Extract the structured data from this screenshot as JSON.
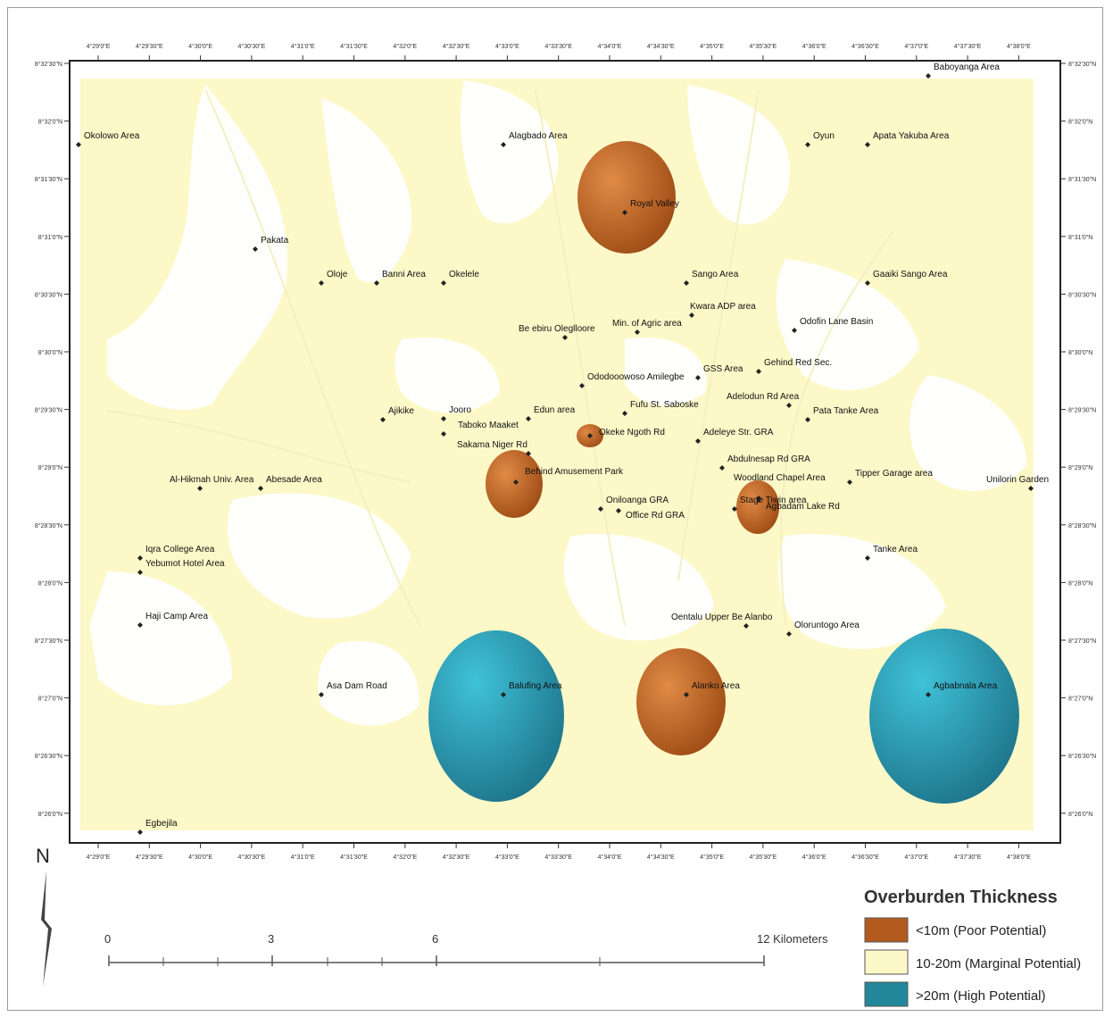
{
  "legend": {
    "title": "Overburden Thickness",
    "items": [
      {
        "label": "<10m (Poor Potential)",
        "color": "#b35a1e"
      },
      {
        "label": "10-20m (Marginal Potential)",
        "color": "#fdf8c8"
      },
      {
        "label": ">20m (High Potential)",
        "color": "#23879c"
      }
    ]
  },
  "scale_bar": {
    "labels": [
      "0",
      "3",
      "6",
      "12 Kilometers"
    ]
  },
  "north_label": "N",
  "places": [
    {
      "name": "Baboyanga Area"
    },
    {
      "name": "Okolowo Area"
    },
    {
      "name": "Alagbado Area"
    },
    {
      "name": "Oyun"
    },
    {
      "name": "Apata Yakuba Area"
    },
    {
      "name": "Royal Valley"
    },
    {
      "name": "Pakata"
    },
    {
      "name": "Oloje"
    },
    {
      "name": "Banni Area"
    },
    {
      "name": "Okelele"
    },
    {
      "name": "Sango Area"
    },
    {
      "name": "Gaaiki Sango Area"
    },
    {
      "name": "Kwara ADP area"
    },
    {
      "name": "Odofin Lane Basin"
    },
    {
      "name": "Be ebiru Oleglloore"
    },
    {
      "name": "Min. of Agric area"
    },
    {
      "name": "GSS Area"
    },
    {
      "name": "Gehind Red Sec."
    },
    {
      "name": "Ododooowoso Amilegbe"
    },
    {
      "name": "Adelodun Rd Area"
    },
    {
      "name": "Ajikike"
    },
    {
      "name": "Jooro"
    },
    {
      "name": "Taboko Maaket"
    },
    {
      "name": "Edun area"
    },
    {
      "name": "Fufu St. Saboske"
    },
    {
      "name": "Pata Tanke Area"
    },
    {
      "name": "Okeke Ngoth Rd"
    },
    {
      "name": "Sakama Niger Rd"
    },
    {
      "name": "Adeleye Str. GRA"
    },
    {
      "name": "Abdulnesap Rd GRA"
    },
    {
      "name": "Behind Amusement Park"
    },
    {
      "name": "Woodland Chapel Area"
    },
    {
      "name": "Tipper Garage area"
    },
    {
      "name": "Unilorin Garden"
    },
    {
      "name": "Al-Hikmah Univ. Area"
    },
    {
      "name": "Abesade Area"
    },
    {
      "name": "Oniloanga GRA"
    },
    {
      "name": "Office Rd GRA"
    },
    {
      "name": "Stage Tiwin area"
    },
    {
      "name": "Agbadam Lake Rd"
    },
    {
      "name": "Iqra College Area"
    },
    {
      "name": "Yebumot Hotel Area"
    },
    {
      "name": "Tanke Area"
    },
    {
      "name": "Haji Camp Area"
    },
    {
      "name": "Oentalu Upper Be Alanbo"
    },
    {
      "name": "Oloruntogo Area"
    },
    {
      "name": "Asa Dam Road"
    },
    {
      "name": "Balufing Area"
    },
    {
      "name": "Alanko Area"
    },
    {
      "name": "Agbabnala Area"
    },
    {
      "name": "Egbejila"
    }
  ],
  "lon_ticks": [
    "4°29'0\"E",
    "4°29'30\"E",
    "4°30'0\"E",
    "4°30'30\"E",
    "4°31'0\"E",
    "4°31'30\"E",
    "4°32'0\"E",
    "4°32'30\"E",
    "4°33'0\"E",
    "4°33'30\"E",
    "4°34'0\"E",
    "4°34'30\"E",
    "4°35'0\"E",
    "4°35'30\"E",
    "4°36'0\"E",
    "4°36'30\"E",
    "4°37'0\"E",
    "4°37'30\"E",
    "4°38'0\"E"
  ],
  "lat_ticks": [
    "8°32'30\"N",
    "8°32'0\"N",
    "8°31'30\"N",
    "8°31'0\"N",
    "8°30'30\"N",
    "8°30'0\"N",
    "8°29'30\"N",
    "8°29'0\"N",
    "8°28'30\"N",
    "8°28'0\"N",
    "8°27'30\"N",
    "8°27'0\"N",
    "8°26'30\"N",
    "8°26'0\"N"
  ]
}
